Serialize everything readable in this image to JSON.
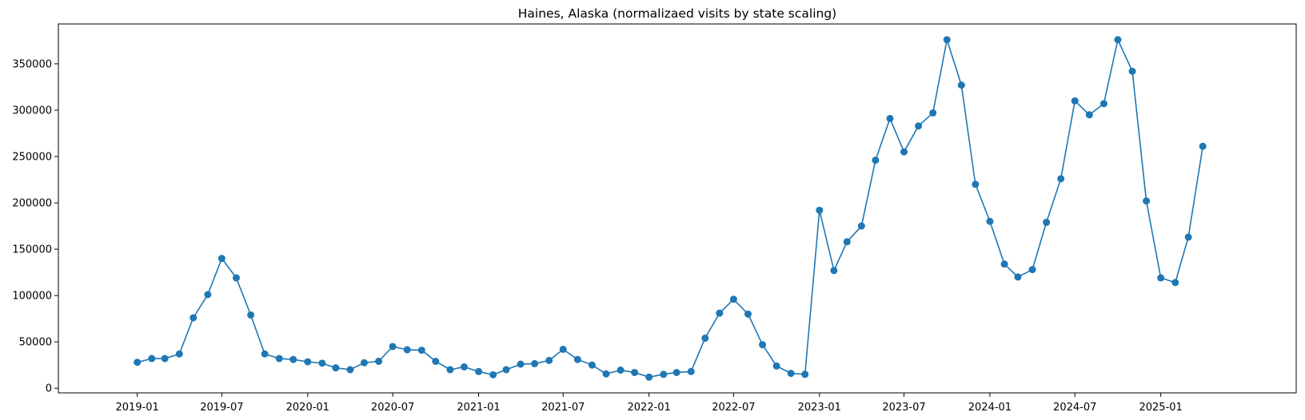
{
  "chart_data": {
    "type": "line",
    "title": "Haines, Alaska (normalizaed visits by state scaling)",
    "xlabel": "",
    "ylabel": "",
    "x_tick_labels": [
      "2019-01",
      "2019-07",
      "2020-01",
      "2020-07",
      "2021-01",
      "2021-07",
      "2022-01",
      "2022-07",
      "2023-01",
      "2023-07",
      "2024-01",
      "2024-07",
      "2025-01"
    ],
    "y_ticks": [
      0,
      50000,
      100000,
      150000,
      200000,
      250000,
      300000,
      350000
    ],
    "y_tick_labels": [
      "0",
      "50000",
      "100000",
      "150000",
      "200000",
      "250000",
      "300000",
      "350000"
    ],
    "ylim": [
      -5000,
      393000
    ],
    "xlim": [
      "2018-07-16",
      "2025-10-18"
    ],
    "grid": false,
    "marker": "circle",
    "colors": {
      "series": "#1f77b4"
    },
    "series": [
      {
        "x": [
          "2019-01",
          "2019-02",
          "2019-03",
          "2019-04",
          "2019-05",
          "2019-06",
          "2019-07",
          "2019-08",
          "2019-09",
          "2019-10",
          "2019-11",
          "2019-12",
          "2020-01",
          "2020-02",
          "2020-03",
          "2020-04",
          "2020-05",
          "2020-06",
          "2020-07",
          "2020-08",
          "2020-09",
          "2020-10",
          "2020-11",
          "2020-12",
          "2021-01",
          "2021-02",
          "2021-03",
          "2021-04",
          "2021-05",
          "2021-06",
          "2021-07",
          "2021-08",
          "2021-09",
          "2021-10",
          "2021-11",
          "2021-12",
          "2022-01",
          "2022-02",
          "2022-03",
          "2022-04",
          "2022-05",
          "2022-06",
          "2022-07",
          "2022-08",
          "2022-09",
          "2022-10",
          "2022-11",
          "2022-12",
          "2023-01",
          "2023-02",
          "2023-03",
          "2023-04",
          "2023-05",
          "2023-06",
          "2023-07",
          "2023-08",
          "2023-09",
          "2023-10",
          "2023-11",
          "2023-12",
          "2024-01",
          "2024-02",
          "2024-03",
          "2024-04",
          "2024-05",
          "2024-06",
          "2024-07",
          "2024-08",
          "2024-09",
          "2024-10",
          "2024-11",
          "2024-12",
          "2025-01",
          "2025-02",
          "2025-03",
          "2025-04"
        ],
        "values": [
          28000,
          32000,
          32000,
          37000,
          76000,
          101000,
          140000,
          119000,
          79000,
          37000,
          32000,
          31000,
          28500,
          27000,
          22000,
          20000,
          27500,
          29000,
          45000,
          41500,
          41000,
          29000,
          20000,
          23000,
          18000,
          14500,
          20000,
          26000,
          26500,
          30000,
          42000,
          31000,
          25000,
          15500,
          19500,
          17000,
          12000,
          15000,
          17000,
          18000,
          54000,
          81000,
          96000,
          80000,
          47000,
          24000,
          16000,
          15000,
          192000,
          127000,
          158000,
          175000,
          246000,
          291000,
          255000,
          283000,
          297000,
          376000,
          327000,
          220000,
          180000,
          134000,
          120000,
          128000,
          179000,
          226000,
          310000,
          295000,
          307000,
          376000,
          342000,
          202000,
          119000,
          114000,
          163000,
          261000
        ]
      }
    ]
  }
}
